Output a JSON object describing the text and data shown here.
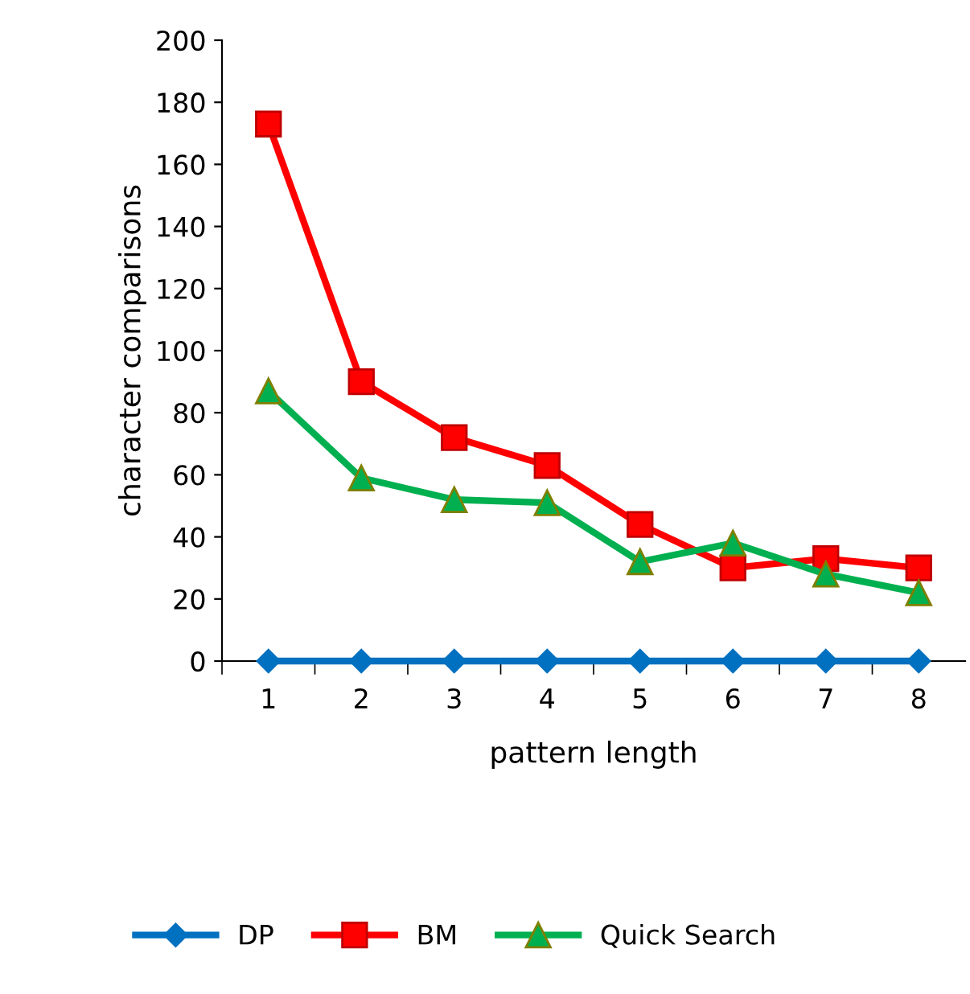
{
  "chart_data": {
    "type": "line",
    "xlabel": "pattern length",
    "ylabel": "character comparisons",
    "categories": [
      "1",
      "2",
      "3",
      "4",
      "5",
      "6",
      "7",
      "8"
    ],
    "series": [
      {
        "name": "DP",
        "color": "#0070c0",
        "marker": "diamond",
        "values": [
          0,
          0,
          0,
          0,
          0,
          0,
          0,
          0
        ]
      },
      {
        "name": "BM",
        "color": "#ff0000",
        "marker": "square",
        "values": [
          173,
          90,
          72,
          63,
          44,
          30,
          33,
          30
        ]
      },
      {
        "name": "Quick Search",
        "color": "#00b050",
        "marker": "triangle",
        "values": [
          87,
          59,
          52,
          51,
          32,
          38,
          28,
          22
        ]
      }
    ],
    "ylim": [
      0,
      200
    ],
    "yticks": [
      0,
      20,
      40,
      60,
      80,
      100,
      120,
      140,
      160,
      180,
      200
    ],
    "grid": false,
    "legend": "bottom",
    "line_style": "solid"
  }
}
